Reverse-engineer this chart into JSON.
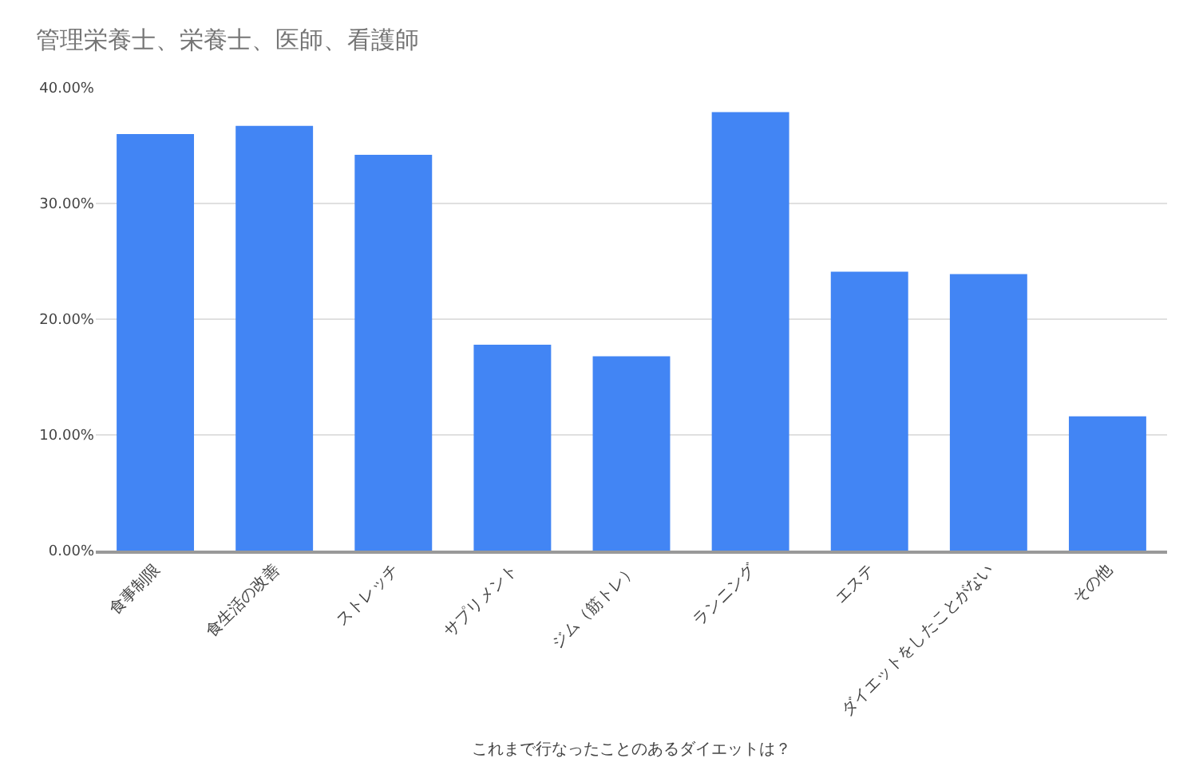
{
  "chart_data": {
    "type": "bar",
    "title": "管理栄養士、栄養士、医師、看護師",
    "xlabel": "これまで行なったことのあるダイエットは？",
    "categories": [
      "食事制限",
      "食生活の改善",
      "ストレッチ",
      "サプリメント",
      "ジム（筋トレ）",
      "ランニング",
      "エステ",
      "ダイエットをしたことがない",
      "その他"
    ],
    "values": [
      0.36,
      0.367,
      0.342,
      0.178,
      0.168,
      0.379,
      0.241,
      0.239,
      0.116
    ],
    "color": "#4285f4",
    "ylim": [
      0,
      0.4
    ],
    "yticks": [
      {
        "value": 0,
        "label": "0.00%"
      },
      {
        "value": 0.1,
        "label": "10.00%"
      },
      {
        "value": 0.2,
        "label": "20.00%"
      },
      {
        "value": 0.3,
        "label": "30.00%"
      },
      {
        "value": 0.4,
        "label": "40.00%"
      }
    ],
    "grid": "y",
    "legend": false
  }
}
